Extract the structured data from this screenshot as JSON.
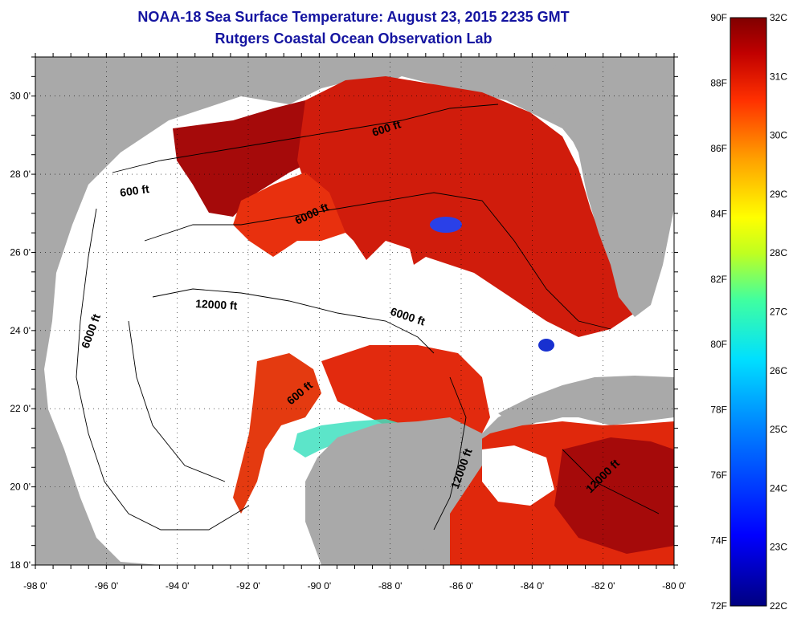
{
  "header": {
    "title": "NOAA-18 Sea Surface Temperature:  August 23, 2015 2235 GMT",
    "subtitle": "Rutgers Coastal Ocean Observation Lab"
  },
  "map": {
    "lon_range": [
      -98,
      -80
    ],
    "lat_range": [
      18,
      31
    ],
    "x_ticks": [
      "-98 0'",
      "-96 0'",
      "-94 0'",
      "-92 0'",
      "-90 0'",
      "-88 0'",
      "-86 0'",
      "-84 0'",
      "-82 0'",
      "-80 0'"
    ],
    "y_ticks": [
      "18 0'",
      "20 0'",
      "22 0'",
      "24 0'",
      "26 0'",
      "28 0'",
      "30 0'"
    ],
    "contour_labels": [
      "600 ft",
      "600 ft",
      "6000 ft",
      "12000 ft",
      "6000 ft",
      "6000 ft",
      "600 ft",
      "12000 ft",
      "12000 ft"
    ],
    "colors": {
      "land": "#a9a9a9",
      "cloud": "#ffffff",
      "warm": "#e0200c",
      "hot": "#a50a0a",
      "mid": "#ff6a10"
    }
  },
  "colorbar": {
    "f_labels": [
      "90F",
      "88F",
      "86F",
      "84F",
      "82F",
      "80F",
      "78F",
      "76F",
      "74F",
      "72F"
    ],
    "c_labels": [
      "32C",
      "31C",
      "30C",
      "29C",
      "28C",
      "27C",
      "26C",
      "25C",
      "24C",
      "23C",
      "22C"
    ],
    "range_f": [
      72,
      90
    ],
    "range_c": [
      22,
      32
    ]
  }
}
